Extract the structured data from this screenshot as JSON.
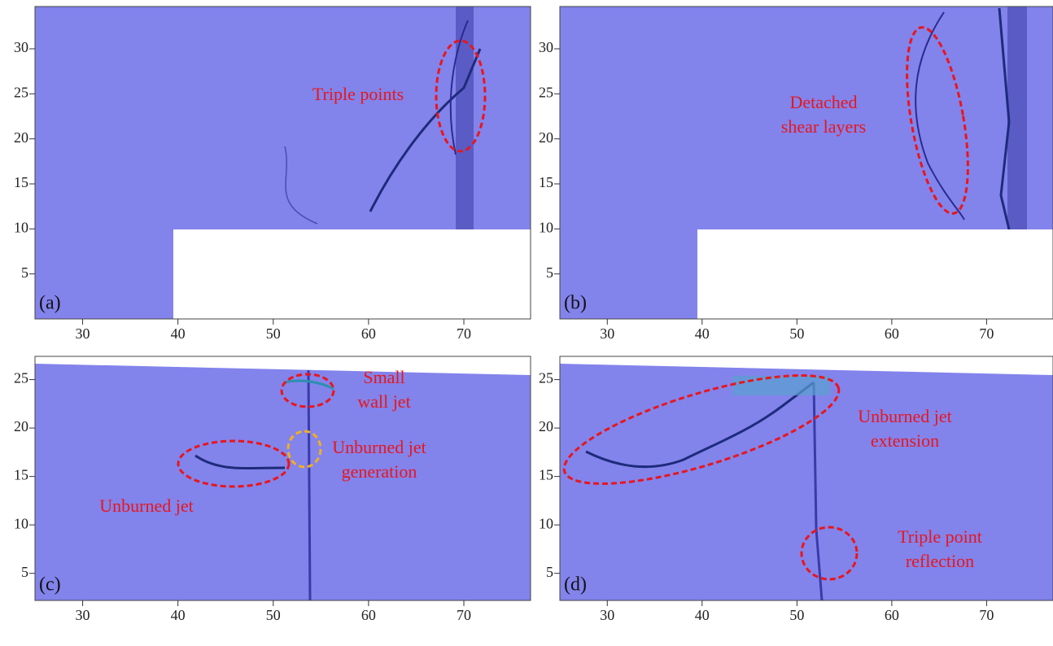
{
  "chart_data": [
    {
      "type": "field",
      "panel_label": "(a)",
      "xlim": [
        25,
        77
      ],
      "ylim": [
        0,
        34.7
      ],
      "xticks": [
        30,
        40,
        50,
        60,
        70
      ],
      "yticks": [
        5,
        10,
        15,
        20,
        25,
        30
      ],
      "annotations": [
        {
          "lines": [
            "Triple points"
          ]
        }
      ]
    },
    {
      "type": "field",
      "panel_label": "(b)",
      "xlim": [
        25,
        77
      ],
      "ylim": [
        0,
        34.7
      ],
      "xticks": [
        30,
        40,
        50,
        60,
        70
      ],
      "yticks": [
        5,
        10,
        15,
        20,
        25,
        30
      ],
      "annotations": [
        {
          "lines": [
            "Detached",
            "shear layers"
          ]
        }
      ]
    },
    {
      "type": "field",
      "panel_label": "(c)",
      "xlim": [
        25,
        77
      ],
      "ylim": [
        2.2,
        27.4
      ],
      "xticks": [
        30,
        40,
        50,
        60,
        70
      ],
      "yticks": [
        5,
        10,
        15,
        20,
        25
      ],
      "annotations": [
        {
          "lines": [
            "Small",
            "wall jet"
          ]
        },
        {
          "lines": [
            "Unburned jet",
            "generation"
          ]
        },
        {
          "lines": [
            "Unburned jet"
          ]
        }
      ]
    },
    {
      "type": "field",
      "panel_label": "(d)",
      "xlim": [
        25,
        77
      ],
      "ylim": [
        2.2,
        27.4
      ],
      "xticks": [
        30,
        40,
        50,
        60,
        70
      ],
      "yticks": [
        5,
        10,
        15,
        20,
        25
      ],
      "annotations": [
        {
          "lines": [
            "Unburned jet",
            "extension"
          ]
        },
        {
          "lines": [
            "Triple point",
            "reflection"
          ]
        }
      ]
    }
  ]
}
